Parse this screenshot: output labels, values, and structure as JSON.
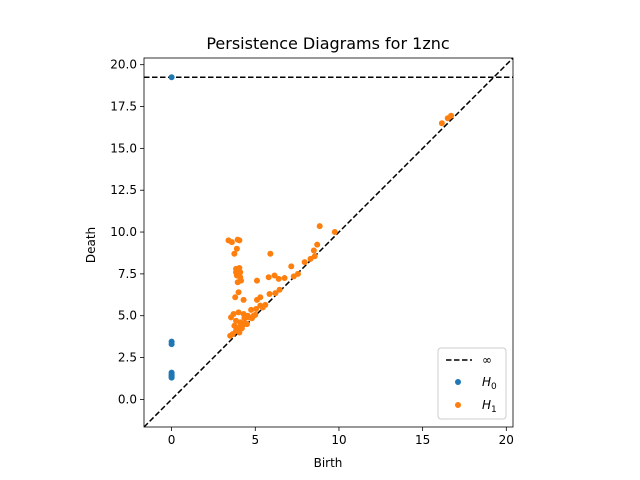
{
  "chart_data": {
    "type": "scatter",
    "title": "Persistence Diagrams for 1znc",
    "xlabel": "Birth",
    "ylabel": "Death",
    "xlim": [
      -1.65,
      20.4
    ],
    "ylim": [
      -1.65,
      20.4
    ],
    "xticks": [
      0,
      5,
      10,
      15,
      20
    ],
    "xtick_labels": [
      "0",
      "5",
      "10",
      "15",
      "20"
    ],
    "yticks": [
      0.0,
      2.5,
      5.0,
      7.5,
      10.0,
      12.5,
      15.0,
      17.5,
      20.0
    ],
    "ytick_labels": [
      "0.0",
      "2.5",
      "5.0",
      "7.5",
      "10.0",
      "12.5",
      "15.0",
      "17.5",
      "20.0"
    ],
    "infinity_line": {
      "y": 19.25,
      "label": "∞"
    },
    "diagonal": true,
    "legend_position": "lower-right",
    "series": [
      {
        "name": "H0",
        "name_main": "H",
        "name_sub": "0",
        "color": "#1f77b4",
        "points": [
          [
            0,
            19.25
          ],
          [
            0,
            3.45
          ],
          [
            0,
            3.3
          ],
          [
            0,
            1.6
          ],
          [
            0,
            1.5
          ],
          [
            0,
            1.42
          ],
          [
            0,
            1.35
          ],
          [
            0,
            1.3
          ]
        ]
      },
      {
        "name": "H1",
        "name_main": "H",
        "name_sub": "1",
        "color": "#ff7f0e",
        "points": [
          [
            3.4,
            9.5
          ],
          [
            3.6,
            9.4
          ],
          [
            3.95,
            9.55
          ],
          [
            4.05,
            9.5
          ],
          [
            3.9,
            9.0
          ],
          [
            3.75,
            8.7
          ],
          [
            5.9,
            8.7
          ],
          [
            3.85,
            7.8
          ],
          [
            4.05,
            7.85
          ],
          [
            3.85,
            7.6
          ],
          [
            4.1,
            7.6
          ],
          [
            3.9,
            7.4
          ],
          [
            4.1,
            7.3
          ],
          [
            4.15,
            7.1
          ],
          [
            3.95,
            7.0
          ],
          [
            5.1,
            7.1
          ],
          [
            5.8,
            7.3
          ],
          [
            6.15,
            7.4
          ],
          [
            6.4,
            7.2
          ],
          [
            6.75,
            7.25
          ],
          [
            7.15,
            7.95
          ],
          [
            7.55,
            7.5
          ],
          [
            7.95,
            8.2
          ],
          [
            8.3,
            8.4
          ],
          [
            8.5,
            8.9
          ],
          [
            8.7,
            9.25
          ],
          [
            8.85,
            10.35
          ],
          [
            9.75,
            10.0
          ],
          [
            8.55,
            8.55
          ],
          [
            7.3,
            7.35
          ],
          [
            4.0,
            6.4
          ],
          [
            3.8,
            6.1
          ],
          [
            4.3,
            5.95
          ],
          [
            5.1,
            5.95
          ],
          [
            5.3,
            6.1
          ],
          [
            5.85,
            6.3
          ],
          [
            6.2,
            6.35
          ],
          [
            6.45,
            6.55
          ],
          [
            3.7,
            5.1
          ],
          [
            4.0,
            5.2
          ],
          [
            4.3,
            5.1
          ],
          [
            4.55,
            5.0
          ],
          [
            4.75,
            5.35
          ],
          [
            5.05,
            5.4
          ],
          [
            5.3,
            5.6
          ],
          [
            5.6,
            5.65
          ],
          [
            3.55,
            4.9
          ],
          [
            3.85,
            4.7
          ],
          [
            4.1,
            4.6
          ],
          [
            4.35,
            4.85
          ],
          [
            4.6,
            4.9
          ],
          [
            4.9,
            5.0
          ],
          [
            3.75,
            4.4
          ],
          [
            4.0,
            4.3
          ],
          [
            4.25,
            4.45
          ],
          [
            4.5,
            4.5
          ],
          [
            3.85,
            4.1
          ],
          [
            4.05,
            4.0
          ],
          [
            3.5,
            3.8
          ],
          [
            3.65,
            3.9
          ],
          [
            4.2,
            4.25
          ],
          [
            4.4,
            4.55
          ],
          [
            4.8,
            4.85
          ],
          [
            5.0,
            5.05
          ],
          [
            5.45,
            5.5
          ],
          [
            16.15,
            16.5
          ],
          [
            16.5,
            16.8
          ],
          [
            16.7,
            16.95
          ]
        ]
      }
    ]
  }
}
